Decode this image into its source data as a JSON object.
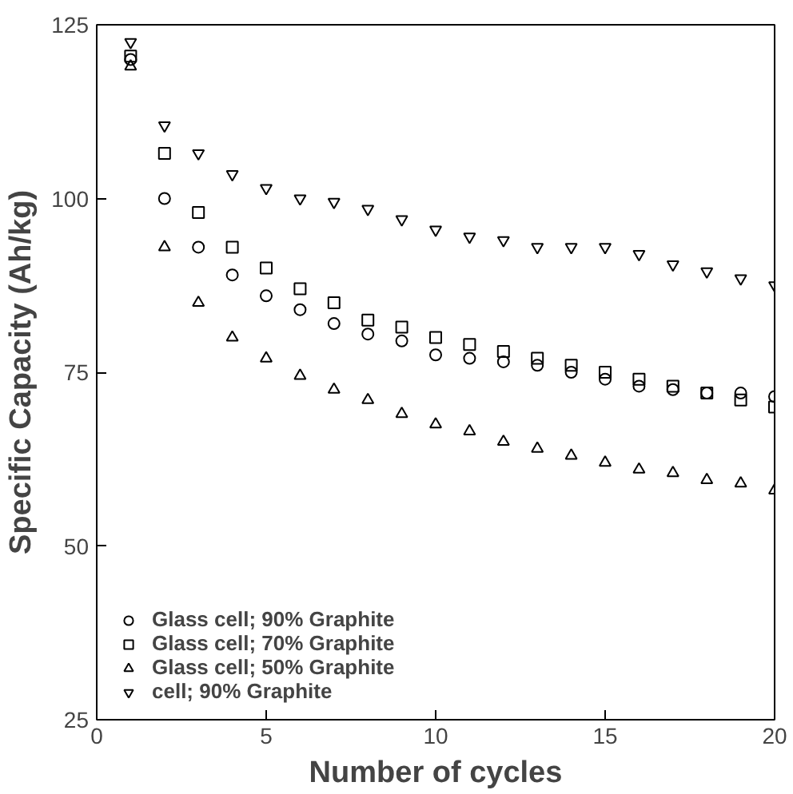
{
  "chart_data": {
    "type": "scatter",
    "xlabel": "Number of cycles",
    "ylabel": "Specific Capacity (Ah/kg)",
    "x": [
      1,
      2,
      3,
      4,
      5,
      6,
      7,
      8,
      9,
      10,
      11,
      12,
      13,
      14,
      15,
      16,
      17,
      18,
      19,
      20
    ],
    "xlim": [
      0,
      20
    ],
    "xticks": [
      0,
      5,
      10,
      15,
      20
    ],
    "ylim": [
      25,
      125
    ],
    "yticks": [
      25,
      50,
      75,
      100,
      125
    ],
    "grid": false,
    "legend": "bottom left",
    "series": [
      {
        "name": "Glass cell; 90% Graphite",
        "color": "#000000",
        "marker": "circle",
        "values": [
          120,
          100,
          93,
          89,
          86,
          84,
          82,
          80.5,
          79.5,
          77.5,
          77,
          76.5,
          76,
          75,
          74,
          73,
          72.5,
          72,
          72,
          71.5
        ]
      },
      {
        "name": "Glass cell; 70% Graphite",
        "color": "#000000",
        "marker": "square",
        "values": [
          120.5,
          106.5,
          98,
          93,
          90,
          87,
          85,
          82.5,
          81.5,
          80,
          79,
          78,
          77,
          76,
          75,
          74,
          73,
          72,
          71,
          70
        ]
      },
      {
        "name": "Glass cell; 50% Graphite",
        "color": "#000000",
        "marker": "triangle",
        "values": [
          119,
          93,
          85,
          80,
          77,
          74.5,
          72.5,
          71,
          69,
          67.5,
          66.5,
          65,
          64,
          63,
          62,
          61,
          60.5,
          59.5,
          59,
          58
        ]
      },
      {
        "name": "cell; 90% Graphite",
        "color": "#000000",
        "values": [
          122.5,
          110.5,
          106.5,
          103.5,
          101.5,
          100,
          99.5,
          98.5,
          97,
          95.5,
          94.5,
          94,
          93,
          93,
          93,
          92,
          90.5,
          89.5,
          88.5,
          87.5
        ]
      }
    ]
  }
}
